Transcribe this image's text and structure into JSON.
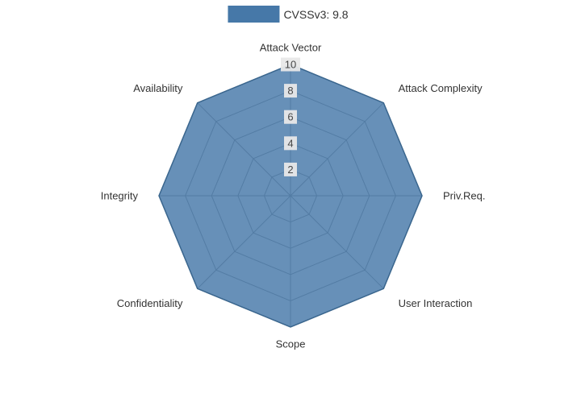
{
  "legend": {
    "label": "CVSSv3: 9.8"
  },
  "chart_data": {
    "type": "radar",
    "title": "",
    "categories": [
      "Attack Vector",
      "Attack Complexity",
      "Priv.Req.",
      "User Interaction",
      "Scope",
      "Confidentiality",
      "Integrity",
      "Availability"
    ],
    "series": [
      {
        "name": "CVSSv3: 9.8",
        "values": [
          10,
          10,
          10,
          10,
          10,
          10,
          10,
          10
        ]
      }
    ],
    "rmin": 0,
    "rmax": 10,
    "ticks": [
      2,
      4,
      6,
      8,
      10
    ],
    "grid": true,
    "legend_position": "top",
    "colors": {
      "fill": "#4678A8",
      "fill_opacity": 0.82,
      "stroke": "#3A668E",
      "grid": "#8f8f8f",
      "spoke": "#8f8f8f",
      "tick_text": "#474747",
      "tick_bg": "#e8e8e8",
      "label_text": "#333333",
      "background": "#ffffff"
    }
  }
}
